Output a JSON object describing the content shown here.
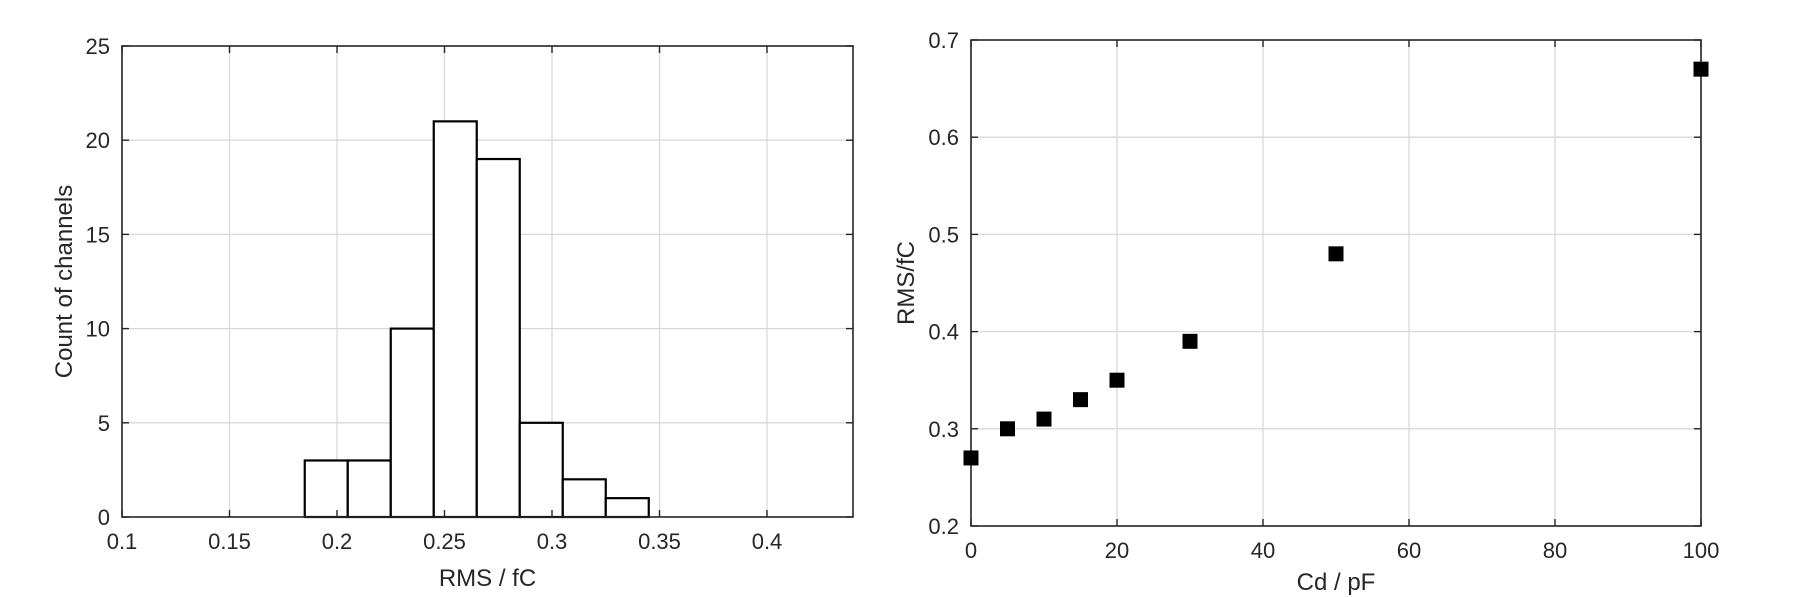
{
  "chart_data": [
    {
      "type": "bar",
      "subtype": "histogram",
      "title": "",
      "xlabel": "RMS / fC",
      "ylabel": "Count of channels",
      "xlim": [
        0.1,
        0.44
      ],
      "ylim": [
        0,
        25
      ],
      "xticks": [
        "0.1",
        "0.15",
        "0.2",
        "0.25",
        "0.3",
        "0.35",
        "0.4"
      ],
      "yticks": [
        "0",
        "5",
        "10",
        "15",
        "20",
        "25"
      ],
      "grid": true,
      "bins": [
        {
          "from": 0.185,
          "to": 0.205,
          "count": 3
        },
        {
          "from": 0.205,
          "to": 0.225,
          "count": 3
        },
        {
          "from": 0.225,
          "to": 0.245,
          "count": 10
        },
        {
          "from": 0.245,
          "to": 0.265,
          "count": 21
        },
        {
          "from": 0.265,
          "to": 0.285,
          "count": 19
        },
        {
          "from": 0.285,
          "to": 0.305,
          "count": 5
        },
        {
          "from": 0.305,
          "to": 0.325,
          "count": 2
        },
        {
          "from": 0.325,
          "to": 0.345,
          "count": 1
        }
      ]
    },
    {
      "type": "scatter",
      "title": "",
      "xlabel": "Cd / pF",
      "ylabel": "RMS/fC",
      "xlim": [
        0,
        100
      ],
      "ylim": [
        0.2,
        0.7
      ],
      "xticks": [
        "0",
        "20",
        "40",
        "60",
        "80",
        "100"
      ],
      "yticks": [
        "0.2",
        "0.3",
        "0.4",
        "0.5",
        "0.6",
        "0.7"
      ],
      "grid": true,
      "marker": "square",
      "marker_color": "#000000",
      "points": [
        {
          "x": 0,
          "y": 0.27
        },
        {
          "x": 5,
          "y": 0.3
        },
        {
          "x": 10,
          "y": 0.31
        },
        {
          "x": 15,
          "y": 0.33
        },
        {
          "x": 20,
          "y": 0.35
        },
        {
          "x": 30,
          "y": 0.39
        },
        {
          "x": 50,
          "y": 0.48
        },
        {
          "x": 100,
          "y": 0.67
        }
      ]
    }
  ]
}
